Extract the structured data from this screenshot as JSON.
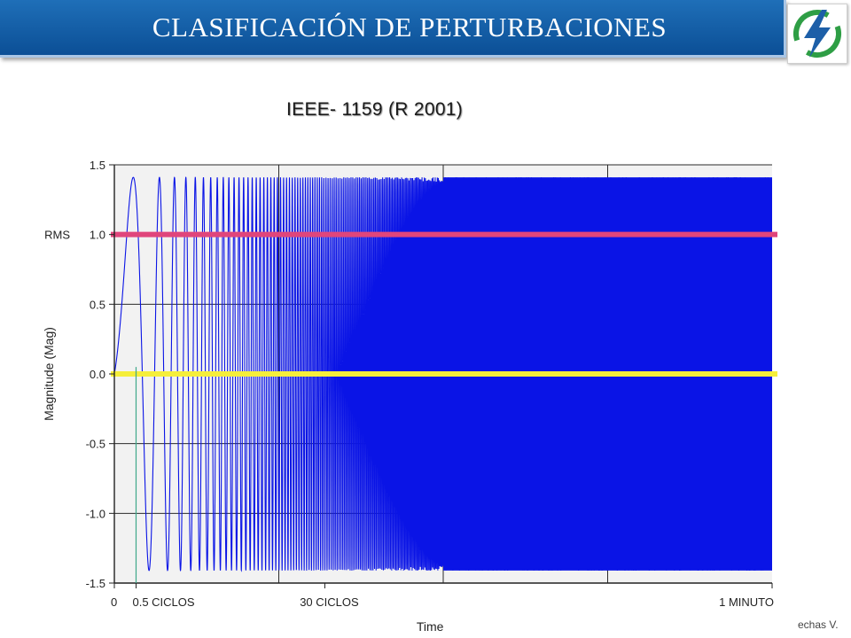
{
  "header": {
    "title": "CLASIFICACIÓN DE PERTURBACIONES"
  },
  "logo": {
    "icon": "lightning-bolt-icon",
    "colors": {
      "ring": "#2e9e45",
      "bolt": "#1d5fa8"
    }
  },
  "footer": {
    "note": "echas V."
  },
  "chart_data": {
    "type": "line",
    "title": "IEEE- 1159 (R 2001)",
    "xlabel": "Time",
    "ylabel": "Magnitude (Mag)",
    "ylim": [
      -1.5,
      1.5
    ],
    "yticks": [
      "1.5",
      "1.0",
      "0.5",
      "0.0",
      "-0.5",
      "-1.0",
      "-1.5"
    ],
    "ytick_values": [
      1.5,
      1.0,
      0.5,
      0.0,
      -0.5,
      -1.0,
      -1.5
    ],
    "rms_tick_prefix": "RMS",
    "xticks": [
      {
        "label": "0",
        "pos": 0.0
      },
      {
        "label": "0.5 CICLOS",
        "pos": 0.033
      },
      {
        "label": "30 CICLOS",
        "pos": 0.32
      },
      {
        "label": "1 MINUTO",
        "pos": 1.0
      }
    ],
    "grid": true,
    "reference_lines": [
      {
        "name": "RMS",
        "y": 1.0,
        "color": "#e0457b"
      },
      {
        "name": "zero",
        "y": 0.0,
        "color": "#f5ee3a"
      }
    ],
    "waveform": {
      "peak": 1.41,
      "color": "#0a14e6",
      "background": "#f2f2f2"
    }
  }
}
